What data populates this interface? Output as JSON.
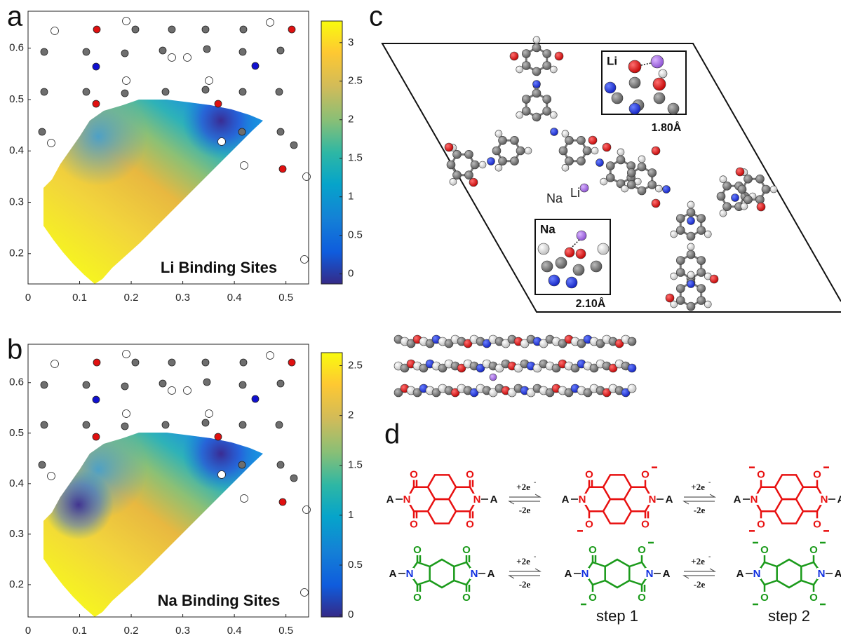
{
  "panel_a": {
    "label": "a",
    "annotation": "Li Binding Sites",
    "xlim": [
      0,
      0.544
    ],
    "xticks": [
      0,
      0.1,
      0.2,
      0.3,
      0.4,
      0.5
    ],
    "ylim": [
      0.141,
      0.672
    ],
    "yticks": [
      0.2,
      0.3,
      0.4,
      0.5,
      0.6
    ],
    "colorbar": {
      "lim": [
        -0.13,
        3.28
      ],
      "ticks": [
        0,
        0.5,
        1,
        1.5,
        2,
        2.5,
        3
      ]
    }
  },
  "panel_b": {
    "label": "b",
    "annotation": "Na Binding Sites",
    "xlim": [
      0,
      0.544
    ],
    "xticks": [
      0,
      0.1,
      0.2,
      0.3,
      0.4,
      0.5
    ],
    "ylim": [
      0.136,
      0.676
    ],
    "yticks": [
      0.2,
      0.3,
      0.4,
      0.5,
      0.6
    ],
    "colorbar": {
      "lim": [
        -0.02,
        2.63
      ],
      "ticks": [
        0,
        0.5,
        1,
        1.5,
        2,
        2.5
      ]
    }
  },
  "panel_c": {
    "label": "c",
    "ion_labels": [
      "Na",
      "Li"
    ],
    "insets": [
      {
        "element": "Li",
        "distance": "1.80Å"
      },
      {
        "element": "Na",
        "distance": "2.10Å"
      }
    ]
  },
  "panel_d": {
    "label": "d",
    "end_group": "A",
    "nitrogen": "N",
    "oxygen": "O",
    "reduction": "+2e",
    "oxidation": "-2e",
    "electron_charge": "-",
    "steps": [
      "step 1",
      "step 2"
    ]
  }
}
